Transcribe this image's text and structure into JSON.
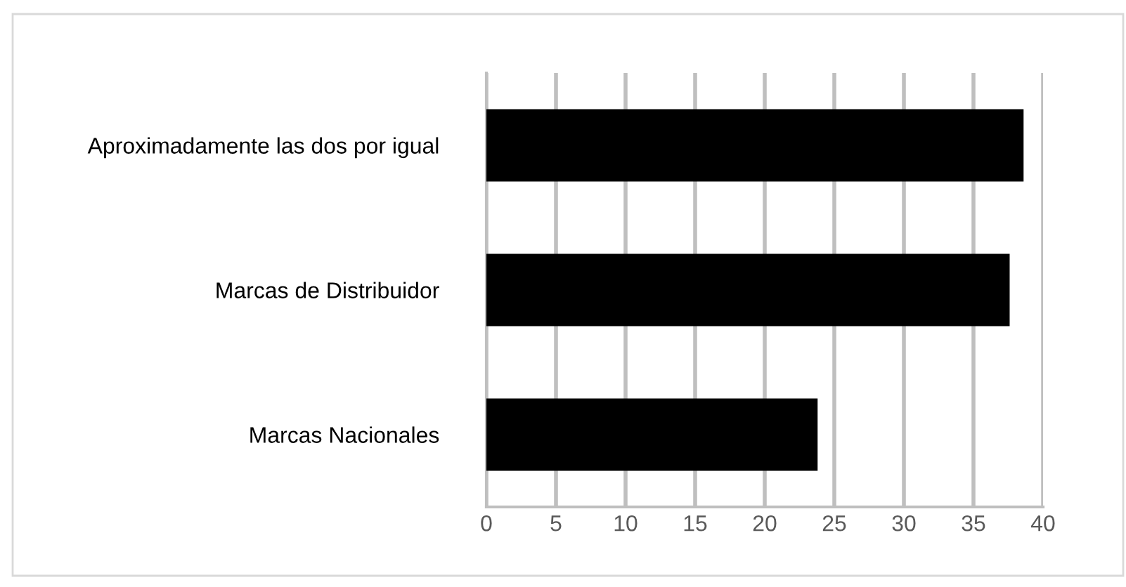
{
  "chart_data": {
    "type": "bar",
    "orientation": "horizontal",
    "categories": [
      "Aproximadamente las dos por igual",
      "Marcas de Distribuidor",
      "Marcas Nacionales"
    ],
    "values": [
      38.6,
      37.6,
      23.8
    ],
    "color": "#000000",
    "xlim": [
      0,
      40
    ],
    "xticks": [
      0,
      5,
      10,
      15,
      20,
      25,
      30,
      35,
      40
    ],
    "grid": "x"
  }
}
